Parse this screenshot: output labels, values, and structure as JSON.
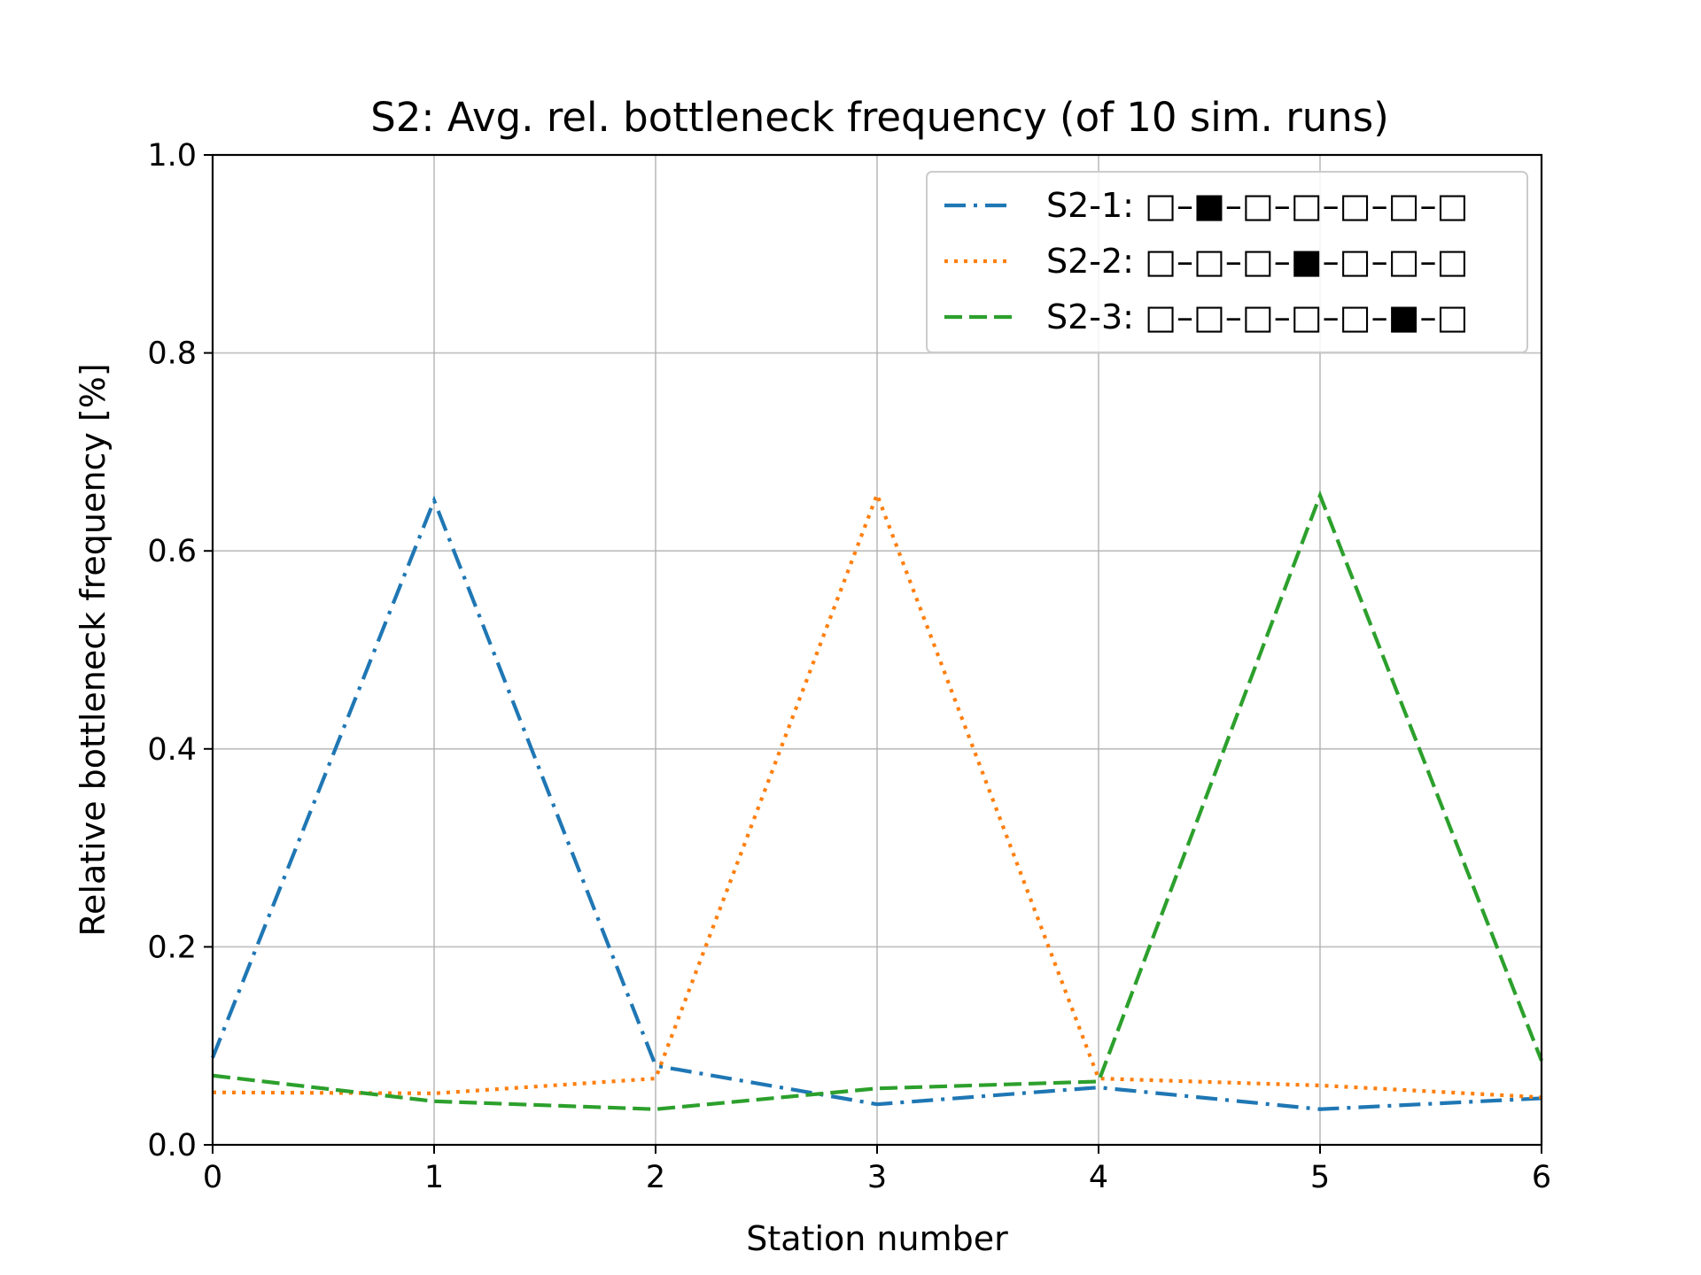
{
  "chart_data": {
    "type": "line",
    "title": "S2: Avg. rel. bottleneck frequency (of 10 sim. runs)",
    "xlabel": "Station number",
    "ylabel": "Relative bottleneck frequency [%]",
    "xlim": [
      0,
      6
    ],
    "ylim": [
      0.0,
      1.0
    ],
    "xticks": [
      "0",
      "1",
      "2",
      "3",
      "4",
      "5",
      "6"
    ],
    "yticks": [
      "0.0",
      "0.2",
      "0.4",
      "0.6",
      "0.8",
      "1.0"
    ],
    "grid": true,
    "legend_position": "upper right",
    "x": [
      0,
      1,
      2,
      3,
      4,
      5,
      6
    ],
    "series": [
      {
        "name": "S2-1: □–■–□–□–□–□–□",
        "values": [
          0.088,
          0.651,
          0.08,
          0.041,
          0.058,
          0.036,
          0.047
        ],
        "color": "#1f77b4",
        "line_style": "dashdot"
      },
      {
        "name": "S2-2: □–□–□–■–□–□–□",
        "values": [
          0.053,
          0.052,
          0.067,
          0.657,
          0.067,
          0.06,
          0.048
        ],
        "color": "#ff7f0e",
        "line_style": "dotted"
      },
      {
        "name": "S2-3: □–□–□–□–□–■–□",
        "values": [
          0.07,
          0.044,
          0.036,
          0.057,
          0.064,
          0.656,
          0.085
        ],
        "color": "#2ca02c",
        "line_style": "dashed"
      }
    ]
  }
}
